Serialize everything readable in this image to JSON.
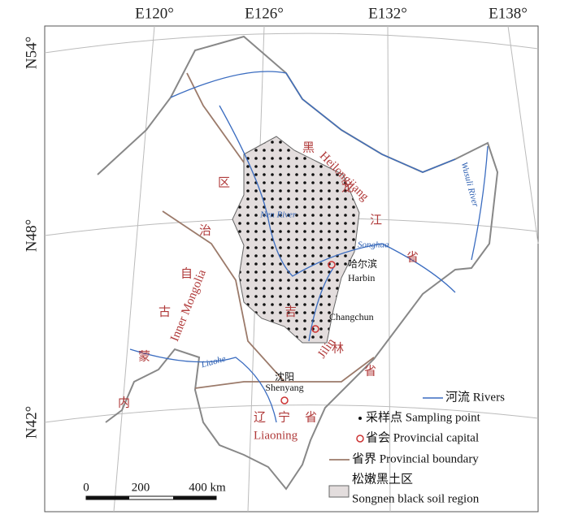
{
  "graticule": {
    "longitudes": [
      "E120°",
      "E126°",
      "E132°",
      "E138°"
    ],
    "latitudes": [
      "N54°",
      "N48°",
      "N42°"
    ]
  },
  "map_labels": {
    "heilongjiang_zh": [
      "黑",
      "龙",
      "江",
      "省"
    ],
    "heilongjiang_en": "Heilongjiang",
    "jilin_zh": [
      "吉",
      "林",
      "省"
    ],
    "jilin_en": "Jilin",
    "liaoning_zh": [
      "辽",
      "宁",
      "省"
    ],
    "liaoning_en": "Liaoning",
    "inner_mongolia_zh": [
      "内",
      "蒙",
      "古",
      "自",
      "治",
      "区"
    ],
    "inner_mongolia_en": "Inner Mongolia",
    "harbin_zh": "哈尔滨",
    "harbin_en": "Harbin",
    "changchun_en": "Changchun",
    "shenyang_zh": "沈阳",
    "shenyang_en": "Shenyang",
    "songhua": "Songhua",
    "nen_river": "Nen River",
    "liaohe": "Liaohe",
    "wusuli_river": "Wusuli River"
  },
  "scale_bar": [
    "0",
    "200",
    "400 km"
  ],
  "legend": [
    "河流 Rivers",
    "采样点 Sampling point",
    "省会 Provincial capital",
    "省界 Provincial boundary",
    "松嫩黑土区",
    "Songnen black soil region"
  ]
}
